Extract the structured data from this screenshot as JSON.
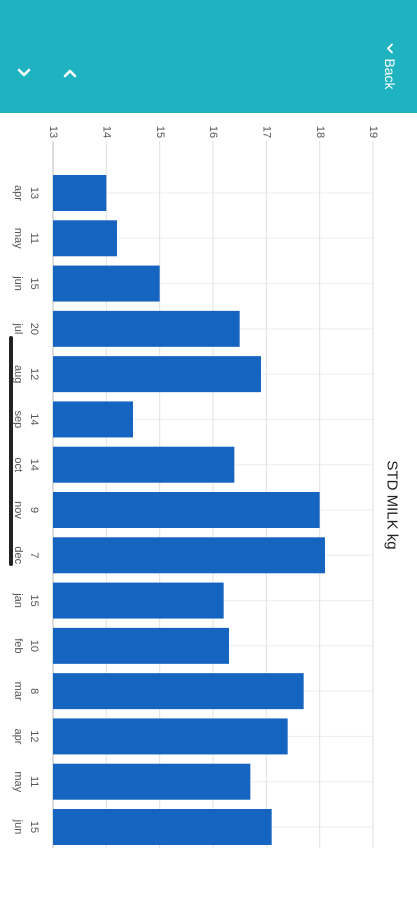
{
  "header": {
    "back_label": "Back",
    "bg_color": "#1fb2c0",
    "icons": [
      "chevron-down-icon",
      "chevron-up-icon",
      "chevron-left-icon"
    ]
  },
  "chart_data": {
    "type": "bar",
    "orientation": "horizontal",
    "title": "STD MILK kg",
    "xlabel": "",
    "ylabel": "",
    "categories": [
      "apr",
      "may",
      "jun",
      "jul",
      "aug",
      "sep",
      "oct",
      "nov",
      "dec",
      "jan",
      "feb",
      "mar",
      "apr",
      "may",
      "jun"
    ],
    "day_labels": [
      "13",
      "11",
      "15",
      "20",
      "12",
      "14",
      "14",
      "9",
      "7",
      "15",
      "10",
      "8",
      "12",
      "11",
      "15"
    ],
    "values": [
      14.0,
      14.2,
      15.0,
      16.5,
      16.9,
      14.5,
      16.4,
      18.0,
      18.1,
      16.2,
      16.3,
      17.7,
      17.4,
      16.7,
      17.1
    ],
    "xlim": [
      13,
      19
    ],
    "xticks": [
      "13",
      "14",
      "15",
      "16",
      "17",
      "18",
      "19"
    ],
    "bar_color": "#1565c0",
    "grid": true
  }
}
